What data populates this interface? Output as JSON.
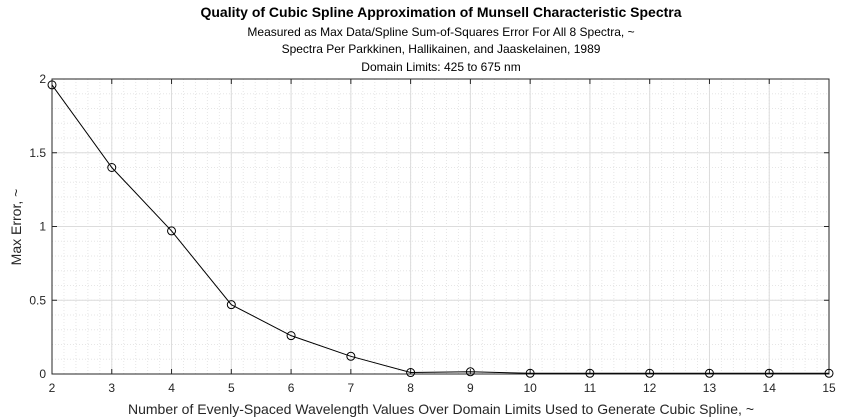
{
  "chart_data": {
    "type": "line",
    "title": "Quality of Cubic Spline Approximation of Munsell Characteristic Spectra",
    "subtitle_lines": [
      "Measured as Max Data/Spline Sum-of-Squares Error For All 8 Spectra, ~",
      "Spectra Per Parkkinen, Hallikainen, and Jaaskelainen, 1989",
      "Domain Limits: 425 to 675 nm"
    ],
    "xlabel": "Number of Evenly-Spaced Wavelength Values Over Domain Limits Used to Generate Cubic Spline, ~",
    "ylabel": "Max Error, ~",
    "x": [
      2,
      3,
      4,
      5,
      6,
      7,
      8,
      9,
      10,
      11,
      12,
      13,
      14,
      15
    ],
    "series": [
      {
        "values": [
          1.96,
          1.4,
          0.97,
          0.47,
          0.26,
          0.12,
          0.01,
          0.015,
          0.005,
          0.005,
          0.005,
          0.005,
          0.005,
          0.005
        ]
      }
    ],
    "xlim": [
      2,
      15
    ],
    "ylim": [
      0,
      2
    ],
    "xticks": [
      "2",
      "3",
      "4",
      "5",
      "6",
      "7",
      "8",
      "9",
      "10",
      "11",
      "12",
      "13",
      "14",
      "15"
    ],
    "yticks": [
      "0",
      "0.5",
      "1",
      "1.5",
      "2"
    ],
    "ytick_values": [
      0,
      0.5,
      1,
      1.5,
      2
    ],
    "grid": true,
    "minor_grid": true,
    "marker": "open-circle",
    "colors": {
      "line": "#000000",
      "grid": "#dcdcdc",
      "axis": "#262626"
    }
  }
}
